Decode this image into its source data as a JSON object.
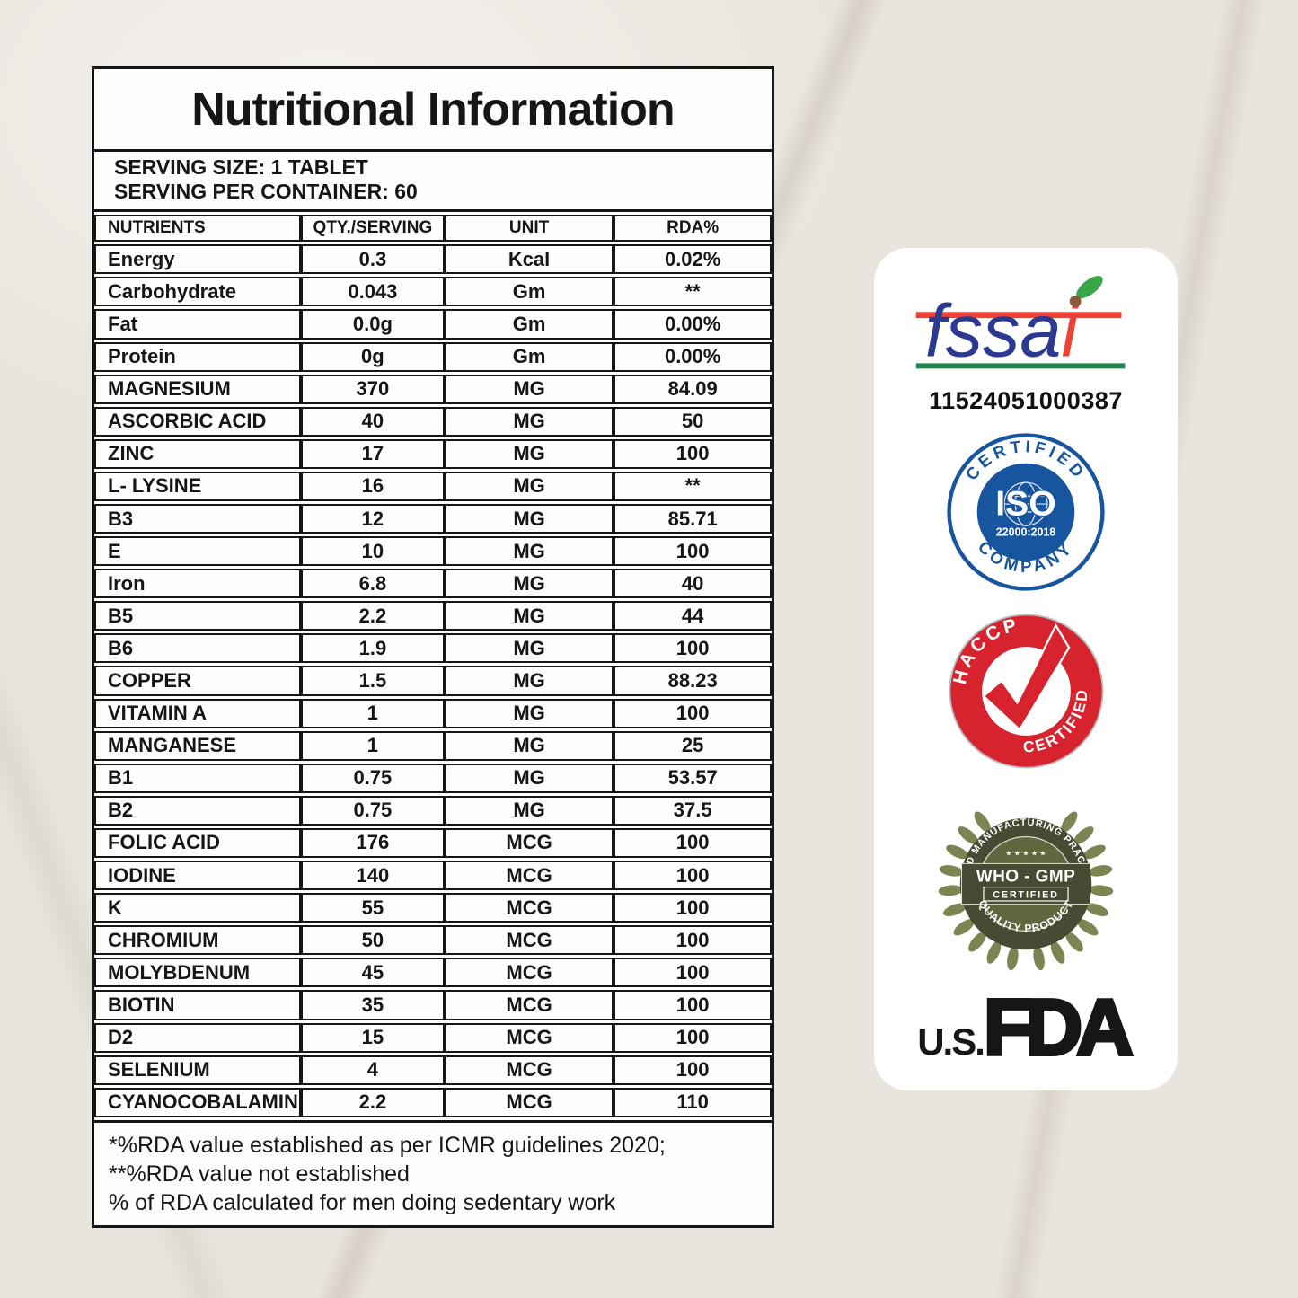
{
  "label": {
    "title": "Nutritional Information",
    "serving_size": "SERVING SIZE: 1 TABLET",
    "serving_per_container": "SERVING PER CONTAINER: 60",
    "table": {
      "headers": [
        "NUTRIENTS",
        "QTY./SERVING",
        "UNIT",
        "RDA%"
      ],
      "rows": [
        [
          "Energy",
          "0.3",
          "Kcal",
          "0.02%"
        ],
        [
          "Carbohydrate",
          "0.043",
          "Gm",
          "**"
        ],
        [
          "Fat",
          "0.0g",
          "Gm",
          "0.00%"
        ],
        [
          "Protein",
          "0g",
          "Gm",
          "0.00%"
        ],
        [
          "MAGNESIUM",
          "370",
          "MG",
          "84.09"
        ],
        [
          "ASCORBIC ACID",
          "40",
          "MG",
          "50"
        ],
        [
          "ZINC",
          "17",
          "MG",
          "100"
        ],
        [
          "L- LYSINE",
          "16",
          "MG",
          "**"
        ],
        [
          "B3",
          "12",
          "MG",
          "85.71"
        ],
        [
          "E",
          "10",
          "MG",
          "100"
        ],
        [
          "Iron",
          "6.8",
          "MG",
          "40"
        ],
        [
          "B5",
          "2.2",
          "MG",
          "44"
        ],
        [
          "B6",
          "1.9",
          "MG",
          "100"
        ],
        [
          "COPPER",
          "1.5",
          "MG",
          "88.23"
        ],
        [
          "VITAMIN A",
          "1",
          "MG",
          "100"
        ],
        [
          "MANGANESE",
          "1",
          "MG",
          "25"
        ],
        [
          "B1",
          "0.75",
          "MG",
          "53.57"
        ],
        [
          "B2",
          "0.75",
          "MG",
          "37.5"
        ],
        [
          "FOLIC ACID",
          "176",
          "MCG",
          "100"
        ],
        [
          "IODINE",
          "140",
          "MCG",
          "100"
        ],
        [
          "K",
          "55",
          "MCG",
          "100"
        ],
        [
          "CHROMIUM",
          "50",
          "MCG",
          "100"
        ],
        [
          "MOLYBDENUM",
          "45",
          "MCG",
          "100"
        ],
        [
          "BIOTIN",
          "35",
          "MCG",
          "100"
        ],
        [
          "D2",
          "15",
          "MCG",
          "100"
        ],
        [
          "SELENIUM",
          "4",
          "MCG",
          "100"
        ],
        [
          "CYANOCOBALAMINE",
          "2.2",
          "MCG",
          "110"
        ]
      ]
    },
    "footnotes": [
      "*%RDA value established as per ICMR guidelines 2020;",
      "**%RDA value not established",
      "% of RDA calculated for men doing sedentary work"
    ]
  },
  "certifications": {
    "fssai": {
      "text_fssa": "fssa",
      "text_i": "i",
      "license_number": "11524051000387",
      "blue": "#2b3990",
      "red": "#ee4236",
      "green": "#1d8649",
      "leaf_green": "#3aa648",
      "seed_brown": "#8a5a3b"
    },
    "iso": {
      "top": "CERTIFIED",
      "bottom": "COMPANY",
      "center": "ISO",
      "standard": "22000:2018",
      "color": "#17559e"
    },
    "haccp": {
      "top": "HACCP",
      "bottom": "CERTIFIED",
      "color": "#d6232e"
    },
    "gmp": {
      "top": "GOOD MANUFACTURING PRACTICE",
      "bottom": "QUALITY PRODUCT",
      "stars": "★ ★ ★ ★ ★",
      "line1": "WHO - GMP",
      "line2": "CERTIFIED",
      "dark_olive": "#454c33",
      "mid_olive": "#5f673f",
      "leaf_olive": "#7d8452"
    },
    "fda": {
      "prefix": "U.S.",
      "letters": "FDA"
    }
  }
}
